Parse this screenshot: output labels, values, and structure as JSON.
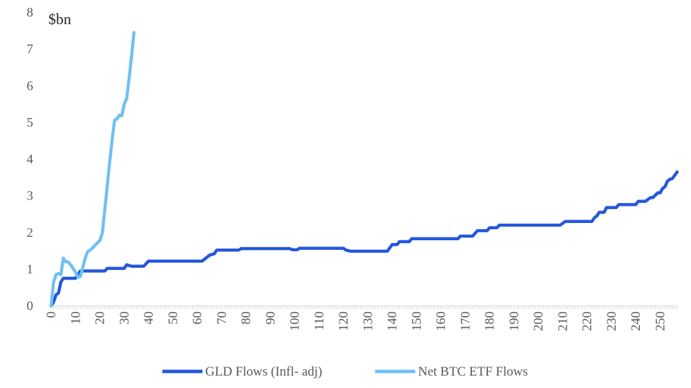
{
  "chart_data": {
    "type": "line",
    "y_unit_label": "$bn",
    "xlim": [
      0,
      257
    ],
    "ylim": [
      0,
      8
    ],
    "y_ticks": [
      0,
      1,
      2,
      3,
      4,
      5,
      6,
      7,
      8
    ],
    "x_ticks": [
      0,
      10,
      20,
      30,
      40,
      50,
      60,
      70,
      80,
      90,
      100,
      110,
      120,
      130,
      140,
      150,
      160,
      170,
      180,
      190,
      200,
      210,
      220,
      230,
      240,
      250
    ],
    "grid": false,
    "legend_position": "bottom",
    "series": [
      {
        "name": "GLD Flows (Infl- adj)",
        "color": "#2457dc",
        "points": [
          [
            0,
            0
          ],
          [
            1,
            0.1
          ],
          [
            2,
            0.3
          ],
          [
            3,
            0.35
          ],
          [
            4,
            0.65
          ],
          [
            5,
            0.75
          ],
          [
            10,
            0.75
          ],
          [
            12,
            0.95
          ],
          [
            22,
            0.95
          ],
          [
            23,
            1.02
          ],
          [
            30,
            1.02
          ],
          [
            31,
            1.12
          ],
          [
            33,
            1.08
          ],
          [
            38,
            1.08
          ],
          [
            40,
            1.22
          ],
          [
            62,
            1.22
          ],
          [
            65,
            1.38
          ],
          [
            67,
            1.42
          ],
          [
            68,
            1.52
          ],
          [
            77,
            1.52
          ],
          [
            78,
            1.56
          ],
          [
            98,
            1.56
          ],
          [
            99,
            1.53
          ],
          [
            101,
            1.53
          ],
          [
            102,
            1.57
          ],
          [
            120,
            1.57
          ],
          [
            121,
            1.52
          ],
          [
            123,
            1.49
          ],
          [
            138,
            1.49
          ],
          [
            140,
            1.67
          ],
          [
            142,
            1.67
          ],
          [
            143,
            1.75
          ],
          [
            147,
            1.75
          ],
          [
            148,
            1.83
          ],
          [
            167,
            1.83
          ],
          [
            168,
            1.9
          ],
          [
            173,
            1.9
          ],
          [
            175,
            2.05
          ],
          [
            179,
            2.05
          ],
          [
            180,
            2.13
          ],
          [
            183,
            2.13
          ],
          [
            184,
            2.2
          ],
          [
            209,
            2.2
          ],
          [
            211,
            2.3
          ],
          [
            222,
            2.3
          ],
          [
            223,
            2.4
          ],
          [
            224,
            2.45
          ],
          [
            225,
            2.55
          ],
          [
            227,
            2.55
          ],
          [
            228,
            2.68
          ],
          [
            232,
            2.68
          ],
          [
            233,
            2.76
          ],
          [
            240,
            2.76
          ],
          [
            241,
            2.85
          ],
          [
            244,
            2.85
          ],
          [
            246,
            2.95
          ],
          [
            247,
            2.95
          ],
          [
            249,
            3.08
          ],
          [
            250,
            3.08
          ],
          [
            251,
            3.2
          ],
          [
            252,
            3.25
          ],
          [
            253,
            3.4
          ],
          [
            254,
            3.45
          ],
          [
            255,
            3.47
          ],
          [
            257,
            3.65
          ]
        ]
      },
      {
        "name": "Net BTC ETF Flows",
        "color": "#6ec1f2",
        "points": [
          [
            0,
            0
          ],
          [
            1,
            0.65
          ],
          [
            2,
            0.85
          ],
          [
            3,
            0.88
          ],
          [
            4,
            0.85
          ],
          [
            5,
            1.3
          ],
          [
            6,
            1.2
          ],
          [
            7,
            1.2
          ],
          [
            8,
            1.12
          ],
          [
            9,
            1.02
          ],
          [
            10,
            0.92
          ],
          [
            11,
            0.78
          ],
          [
            12,
            0.8
          ],
          [
            13,
            1.05
          ],
          [
            14,
            1.3
          ],
          [
            15,
            1.48
          ],
          [
            16,
            1.52
          ],
          [
            17,
            1.58
          ],
          [
            18,
            1.65
          ],
          [
            19,
            1.72
          ],
          [
            20,
            1.78
          ],
          [
            21,
            1.98
          ],
          [
            22,
            2.6
          ],
          [
            23,
            3.25
          ],
          [
            24,
            3.9
          ],
          [
            25,
            4.5
          ],
          [
            26,
            5.05
          ],
          [
            27,
            5.1
          ],
          [
            28,
            5.2
          ],
          [
            29,
            5.18
          ],
          [
            30,
            5.5
          ],
          [
            31,
            5.65
          ],
          [
            32,
            6.2
          ],
          [
            33,
            6.8
          ],
          [
            34,
            7.45
          ]
        ]
      }
    ]
  }
}
